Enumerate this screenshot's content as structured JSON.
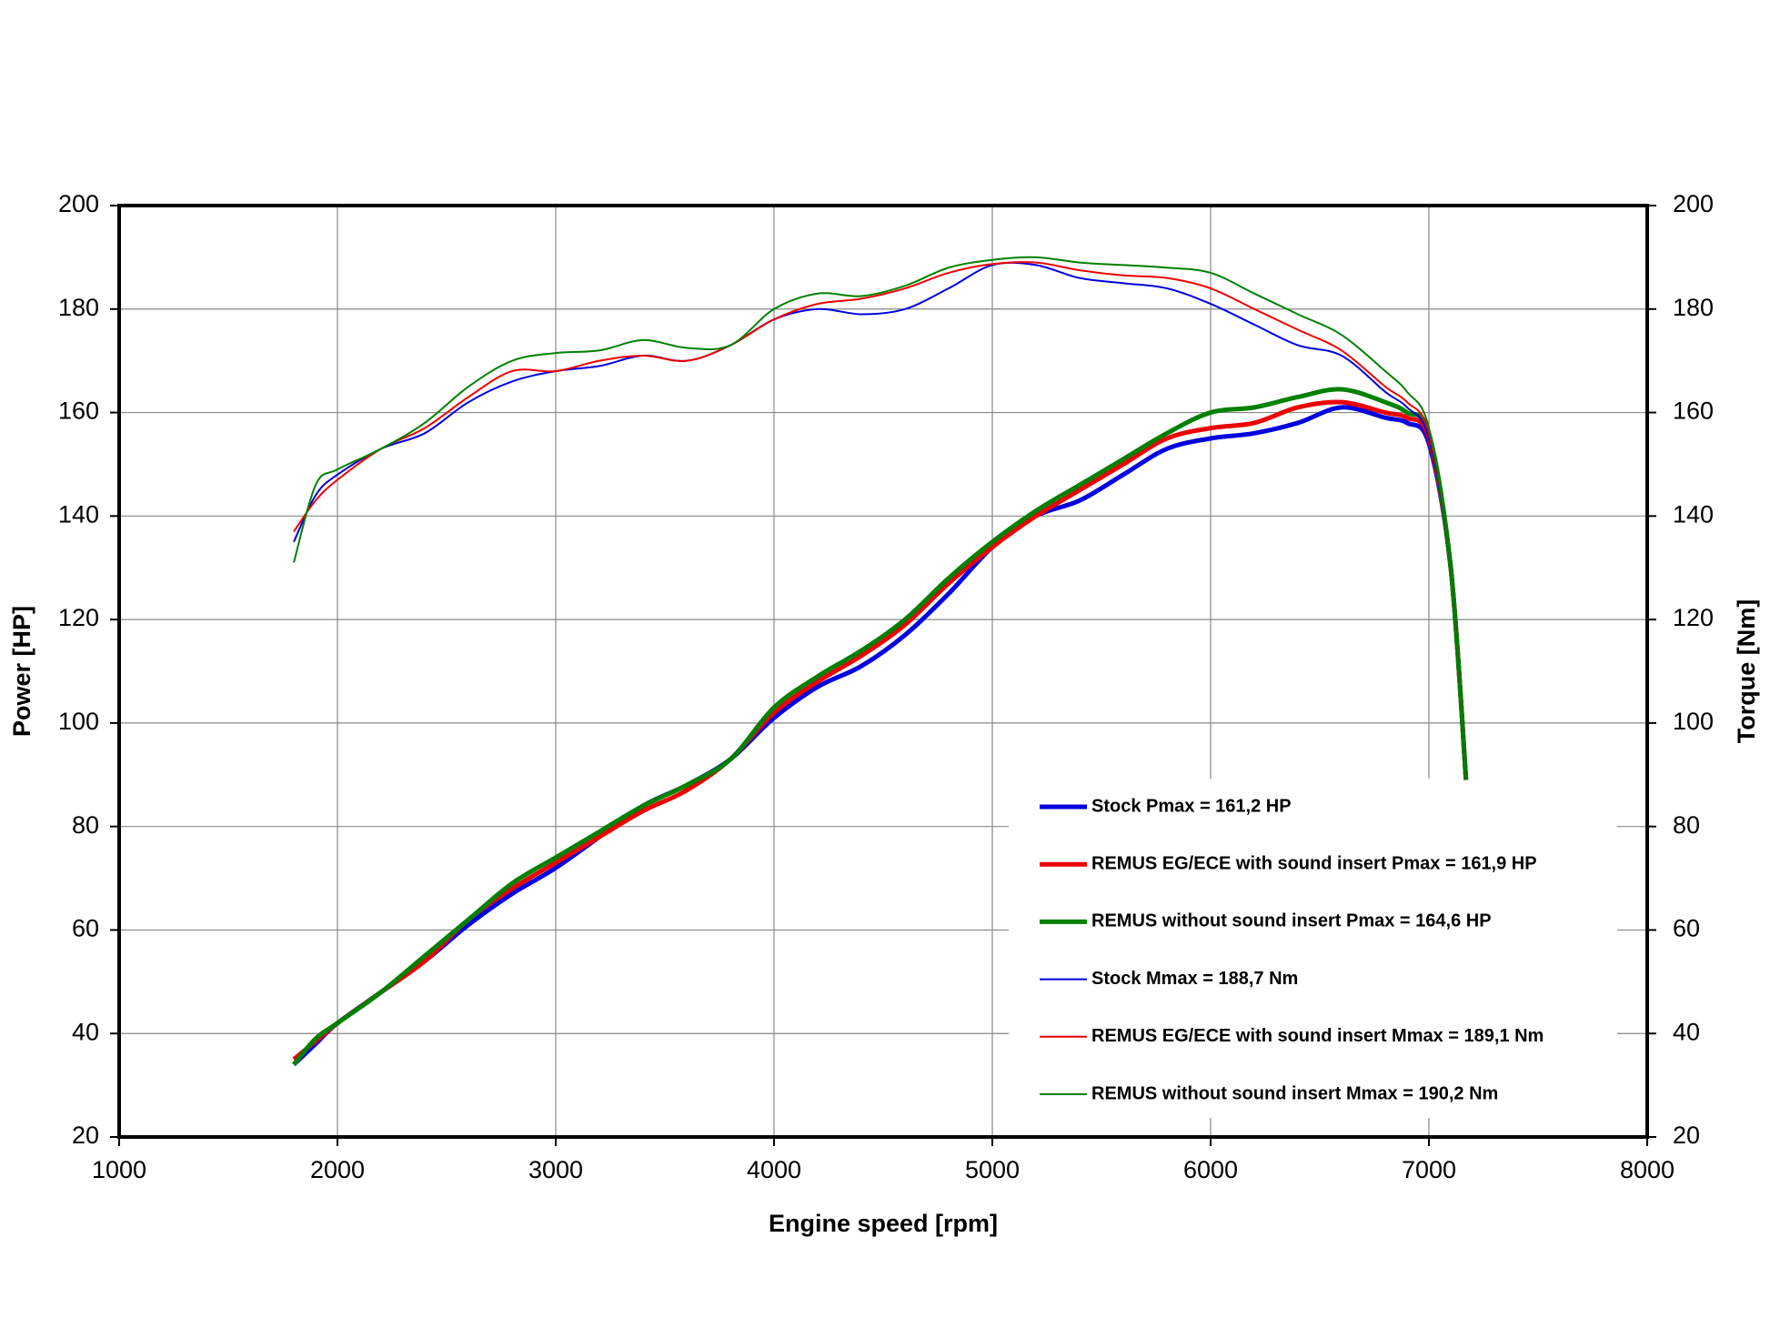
{
  "chart_data": {
    "type": "line",
    "x_label": "Engine speed [rpm]",
    "y_label": "Power [HP]",
    "y2_label": "Torque [Nm]",
    "x": [
      1800,
      1900,
      2000,
      2200,
      2400,
      2600,
      2800,
      3000,
      3200,
      3400,
      3600,
      3800,
      4000,
      4200,
      4400,
      4600,
      4800,
      5000,
      5200,
      5400,
      5600,
      5800,
      6000,
      6200,
      6400,
      6600,
      6800,
      6900,
      7000,
      7100,
      7170
    ],
    "xlim": [
      1000,
      8000
    ],
    "xticks": [
      1000,
      2000,
      3000,
      4000,
      5000,
      6000,
      7000,
      8000
    ],
    "ylim": [
      20,
      200
    ],
    "yticks": [
      20,
      40,
      60,
      80,
      100,
      120,
      140,
      160,
      180,
      200
    ],
    "y2lim": [
      20,
      200
    ],
    "y2ticks": [
      20,
      40,
      60,
      80,
      100,
      120,
      140,
      160,
      180,
      200
    ],
    "grid": true,
    "legend": "lower right",
    "series": [
      {
        "name": "Stock Pmax = 161,2 HP",
        "color": "#0000e0",
        "linewidth": 5,
        "values": [
          34,
          38,
          42,
          48,
          54,
          61,
          67,
          72,
          78,
          84,
          88,
          93,
          101,
          107,
          111,
          117,
          125,
          134,
          140,
          143,
          148,
          153,
          155,
          156,
          158,
          161,
          159,
          158,
          154,
          130,
          89
        ]
      },
      {
        "name": "REMUS EG/ECE with sound insert Pmax = 161,9 HP",
        "color": "#ee0000",
        "linewidth": 5,
        "values": [
          35,
          38.5,
          42,
          48,
          54,
          62,
          68,
          73,
          78,
          83,
          87,
          93,
          102,
          108,
          113,
          119,
          127,
          134,
          140,
          145,
          150,
          155,
          157,
          158,
          161,
          162,
          160,
          159,
          155,
          130,
          89
        ]
      },
      {
        "name": "REMUS without sound insert Pmax = 164,6 HP",
        "color": "#008000",
        "linewidth": 5,
        "values": [
          34,
          39,
          42,
          48,
          55,
          62,
          69,
          74,
          79,
          84,
          88,
          93,
          103,
          109,
          114,
          120,
          128,
          135,
          141,
          146,
          151,
          156,
          160,
          161,
          163,
          164.5,
          162,
          160,
          156,
          130,
          89
        ]
      },
      {
        "name": "Stock Mmax = 188,7 Nm",
        "color": "#0000e0",
        "linewidth": 2,
        "axis": "y2",
        "values": [
          135,
          144,
          148,
          153,
          156,
          162,
          166,
          168,
          169,
          171,
          170,
          173,
          178,
          180,
          179,
          180,
          184,
          188.5,
          188.5,
          186,
          185,
          184,
          181,
          177,
          173,
          171,
          164,
          161,
          155,
          130,
          89
        ]
      },
      {
        "name": "REMUS EG/ECE with sound insert Mmax = 189,1 Nm",
        "color": "#ee0000",
        "linewidth": 2,
        "axis": "y2",
        "values": [
          137,
          143,
          147,
          153,
          157,
          163,
          168,
          168,
          170,
          171,
          170,
          173,
          178,
          181,
          182,
          184,
          187,
          188.7,
          189,
          187.5,
          186.5,
          186,
          184,
          180,
          176,
          172,
          165,
          162,
          156,
          130,
          89
        ]
      },
      {
        "name": "REMUS without sound insert Mmax = 190,2 Nm",
        "color": "#008000",
        "linewidth": 2,
        "axis": "y2",
        "values": [
          131,
          146,
          149,
          153,
          158,
          165,
          170,
          171.5,
          172,
          174,
          172.5,
          173,
          180,
          183,
          182.5,
          184.5,
          188,
          189.5,
          190,
          189,
          188.5,
          188,
          187,
          183,
          179,
          175,
          168,
          164,
          157,
          130,
          89
        ]
      }
    ]
  }
}
